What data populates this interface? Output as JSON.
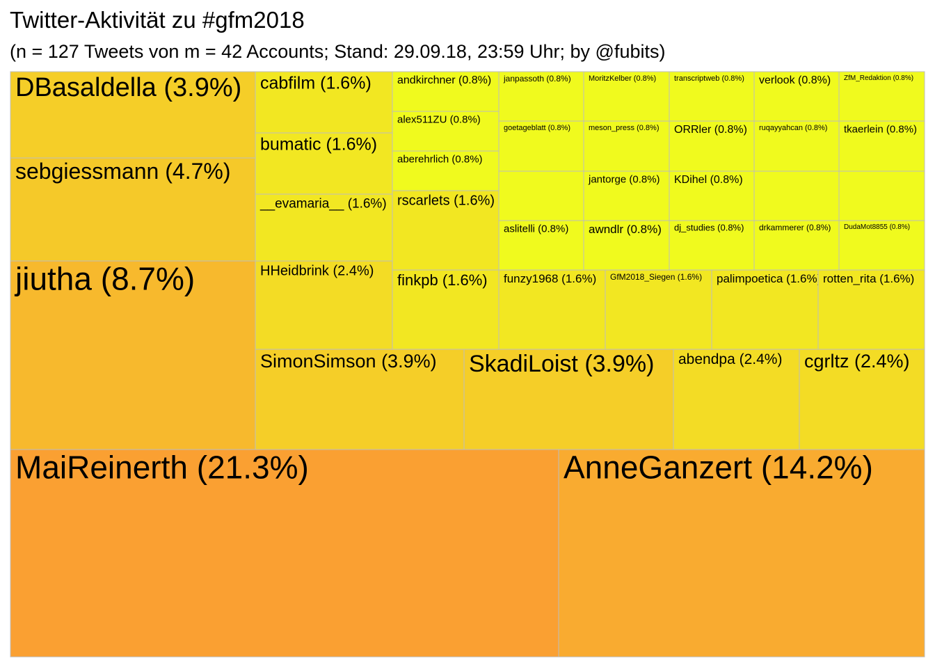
{
  "chart_data": {
    "type": "treemap",
    "title": "Twitter-Aktivität zu #gfm2018",
    "subtitle": "(n = 127 Tweets von m = 42 Accounts; Stand: 29.09.18, 23:59 Uhr; by @fubits)",
    "label_format": "{name} ({share})",
    "color_scale": {
      "low": "#F0FA1E",
      "high": "#FAA032"
    },
    "border_color": "#BDBDBD",
    "leaves": [
      {
        "name": "MaiReinerth",
        "share": "21.3%",
        "tweets": 27
      },
      {
        "name": "AnneGanzert",
        "share": "14.2%",
        "tweets": 18
      },
      {
        "name": "jiutha",
        "share": "8.7%",
        "tweets": 11
      },
      {
        "name": "sebgiessmann",
        "share": "4.7%",
        "tweets": 6
      },
      {
        "name": "DBasaldella",
        "share": "3.9%",
        "tweets": 5
      },
      {
        "name": "SimonSimson",
        "share": "3.9%",
        "tweets": 5
      },
      {
        "name": "SkadiLoist",
        "share": "3.9%",
        "tweets": 5
      },
      {
        "name": "abendpa",
        "share": "2.4%",
        "tweets": 3
      },
      {
        "name": "cgrltz",
        "share": "2.4%",
        "tweets": 3
      },
      {
        "name": "HHeidbrink",
        "share": "2.4%",
        "tweets": 3
      },
      {
        "name": "cabfilm",
        "share": "1.6%",
        "tweets": 2
      },
      {
        "name": "bumatic",
        "share": "1.6%",
        "tweets": 2
      },
      {
        "name": "__evamaria__",
        "share": "1.6%",
        "tweets": 2
      },
      {
        "name": "rscarlets",
        "share": "1.6%",
        "tweets": 2
      },
      {
        "name": "finkpb",
        "share": "1.6%",
        "tweets": 2
      },
      {
        "name": "funzy1968",
        "share": "1.6%",
        "tweets": 2
      },
      {
        "name": "GfM2018_Siegen",
        "share": "1.6%",
        "tweets": 2
      },
      {
        "name": "palimpoetica",
        "share": "1.6%",
        "tweets": 2
      },
      {
        "name": "rotten_rita",
        "share": "1.6%",
        "tweets": 2
      },
      {
        "name": "andkirchner",
        "share": "0.8%",
        "tweets": 1
      },
      {
        "name": "alex511ZU",
        "share": "0.8%",
        "tweets": 1
      },
      {
        "name": "aberehrlich",
        "share": "0.8%",
        "tweets": 1
      },
      {
        "name": "janpassoth",
        "share": "0.8%",
        "tweets": 1
      },
      {
        "name": "MoritzKelber",
        "share": "0.8%",
        "tweets": 1
      },
      {
        "name": "transcriptweb",
        "share": "0.8%",
        "tweets": 1
      },
      {
        "name": "verlook",
        "share": "0.8%",
        "tweets": 1
      },
      {
        "name": "ZfM_Redaktion",
        "share": "0.8%",
        "tweets": 1
      },
      {
        "name": "goetageblatt",
        "share": "0.8%",
        "tweets": 1
      },
      {
        "name": "meson_press",
        "share": "0.8%",
        "tweets": 1
      },
      {
        "name": "ORRler",
        "share": "0.8%",
        "tweets": 1
      },
      {
        "name": "ruqayyahcan",
        "share": "0.8%",
        "tweets": 1
      },
      {
        "name": "tkaerlein",
        "share": "0.8%",
        "tweets": 1
      },
      {
        "name": "",
        "share": "",
        "tweets": 1
      },
      {
        "name": "jantorge",
        "share": "0.8%",
        "tweets": 1
      },
      {
        "name": "KDihel",
        "share": "0.8%",
        "tweets": 1
      },
      {
        "name": "",
        "share": "",
        "tweets": 1
      },
      {
        "name": "",
        "share": "",
        "tweets": 1
      },
      {
        "name": "aslitelli",
        "share": "0.8%",
        "tweets": 1
      },
      {
        "name": "awndlr",
        "share": "0.8%",
        "tweets": 1
      },
      {
        "name": "dj_studies",
        "share": "0.8%",
        "tweets": 1
      },
      {
        "name": "drkammerer",
        "share": "0.8%",
        "tweets": 1
      },
      {
        "name": "DudaMot8855",
        "share": "0.8%",
        "tweets": 1
      }
    ]
  }
}
